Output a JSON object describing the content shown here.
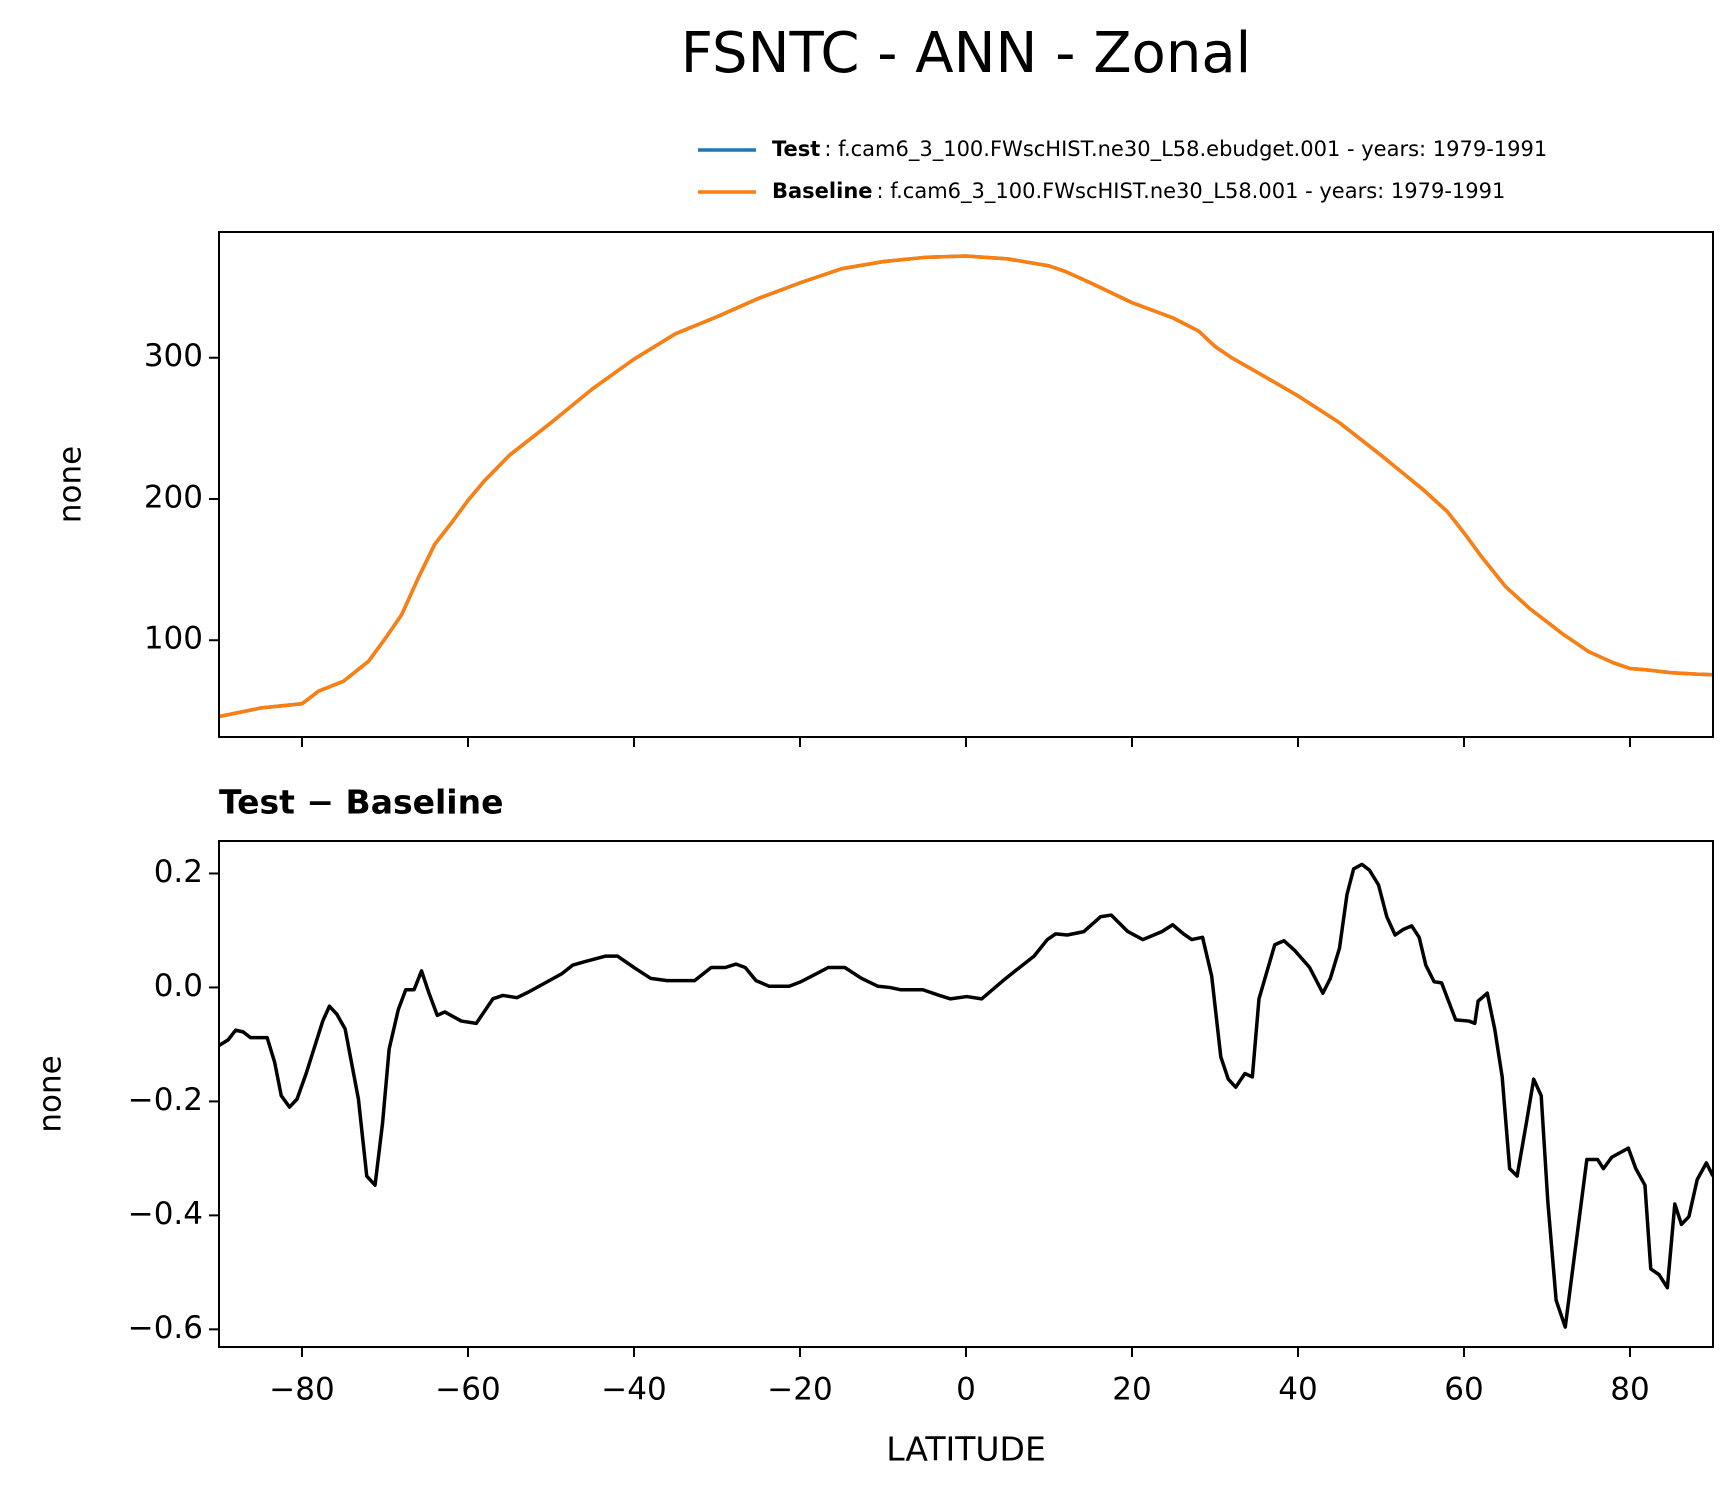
{
  "title": "FSNTC - ANN - Zonal",
  "chart_data": [
    {
      "type": "line",
      "ylabel": "none",
      "x": [
        -90,
        -85,
        -80,
        -78,
        -75,
        -72,
        -70,
        -68,
        -66,
        -64,
        -62,
        -60,
        -58,
        -55,
        -50,
        -45,
        -40,
        -35,
        -30,
        -25,
        -20,
        -15,
        -10,
        -5,
        0,
        5,
        10,
        12,
        15,
        20,
        25,
        28,
        30,
        32,
        35,
        40,
        45,
        50,
        55,
        58,
        60,
        62,
        65,
        68,
        70,
        72,
        75,
        78,
        80,
        82,
        85,
        88,
        90
      ],
      "series": [
        {
          "name": "Test",
          "description": ": f.cam6_3_100.FWscHIST.ne30_L58.ebudget.001 - years: 1979-1991",
          "color": "#1f77b4",
          "values": [
            46,
            52,
            55,
            64,
            71,
            85,
            101,
            118,
            144,
            168,
            183,
            199,
            213,
            231,
            254,
            278,
            299,
            317,
            329,
            342,
            353,
            363,
            368,
            371,
            372,
            370,
            365,
            361,
            353,
            339,
            328,
            319,
            308,
            300,
            290,
            273,
            254,
            231,
            207,
            191,
            176,
            160,
            138,
            122,
            113,
            104,
            92,
            84,
            80,
            79,
            77,
            76,
            75.6
          ]
        },
        {
          "name": "Baseline",
          "description": ": f.cam6_3_100.FWscHIST.ne30_L58.001 - years: 1979-1991",
          "color": "#ff7f0e",
          "values": [
            46,
            52,
            55,
            64,
            71,
            85,
            101,
            118,
            144,
            168,
            183,
            199,
            213,
            231,
            254,
            278,
            299,
            317,
            329,
            342,
            353,
            363,
            368,
            371,
            372,
            370,
            365,
            361,
            353,
            339,
            328,
            319,
            308,
            300,
            290,
            273,
            254,
            231,
            207,
            191,
            176,
            160,
            138,
            122,
            113,
            104,
            92,
            84,
            80,
            79,
            77,
            76,
            75.6
          ]
        }
      ],
      "xlim": [
        -90,
        90
      ],
      "xticks": [
        -80,
        -60,
        -40,
        -20,
        0,
        20,
        40,
        60,
        80
      ],
      "ylim": [
        31.5,
        389
      ],
      "yticks": [
        100,
        200,
        300
      ]
    },
    {
      "type": "line",
      "title": "Test − Baseline",
      "xlabel": "LATITUDE",
      "ylabel": "none",
      "x": [
        -90,
        -88.9,
        -88,
        -87.1,
        -86.2,
        -84.2,
        -83.3,
        -82.5,
        -81.5,
        -80.6,
        -79.5,
        -77.5,
        -76.7,
        -75.8,
        -74.8,
        -73.2,
        -72.2,
        -71.2,
        -70.3,
        -69.5,
        -68.4,
        -67.5,
        -66.5,
        -65.6,
        -64.7,
        -63.7,
        -62.8,
        -60.8,
        -59,
        -57,
        -55.8,
        -54.1,
        -52.7,
        -50.7,
        -48.7,
        -47.4,
        -46,
        -43.4,
        -42,
        -40,
        -38,
        -36,
        -32.7,
        -30.7,
        -29,
        -27.7,
        -26.6,
        -25.3,
        -23.7,
        -21.3,
        -19.9,
        -17.9,
        -16.6,
        -14.6,
        -12.6,
        -10.6,
        -9.2,
        -7.9,
        -5.2,
        -3.2,
        -1.9,
        0.1,
        1.9,
        4.8,
        8.2,
        9.8,
        10.8,
        12.2,
        14.2,
        16.2,
        17.5,
        19.5,
        21.3,
        23.6,
        24.9,
        26.2,
        27.2,
        28.5,
        29.6,
        30.7,
        31.6,
        32.5,
        33.6,
        34.5,
        35.3,
        37.2,
        38.3,
        39.6,
        41.4,
        43,
        43.9,
        45,
        45.9,
        46.7,
        47.7,
        48.6,
        49.7,
        50.7,
        51.7,
        52.7,
        53.7,
        54.6,
        55.4,
        56.4,
        57.3,
        59,
        60.6,
        61.3,
        61.7,
        62.8,
        63.7,
        64.6,
        65.5,
        66.4,
        67.5,
        68.4,
        69.3,
        70.1,
        71.1,
        72.2,
        73.1,
        74.8,
        76.1,
        76.8,
        77.8,
        79.8,
        80.7,
        81.8,
        82.5,
        83.5,
        84.5,
        85.4,
        86.2,
        87.1,
        88.1,
        89.2,
        90
      ],
      "series": [
        {
          "color": "#000000",
          "values": [
            -0.102,
            -0.092,
            -0.075,
            -0.078,
            -0.088,
            -0.088,
            -0.131,
            -0.19,
            -0.21,
            -0.196,
            -0.151,
            -0.059,
            -0.033,
            -0.047,
            -0.073,
            -0.196,
            -0.331,
            -0.347,
            -0.239,
            -0.108,
            -0.039,
            -0.004,
            -0.004,
            0.029,
            -0.01,
            -0.049,
            -0.043,
            -0.059,
            -0.063,
            -0.02,
            -0.014,
            -0.018,
            -0.008,
            0.008,
            0.024,
            0.039,
            0.045,
            0.055,
            0.055,
            0.035,
            0.016,
            0.012,
            0.012,
            0.035,
            0.035,
            0.041,
            0.035,
            0.012,
            0.002,
            0.002,
            0.01,
            0.025,
            0.035,
            0.035,
            0.016,
            0.002,
            0,
            -0.004,
            -0.004,
            -0.014,
            -0.02,
            -0.016,
            -0.02,
            0.016,
            0.055,
            0.084,
            0.094,
            0.092,
            0.098,
            0.124,
            0.127,
            0.098,
            0.084,
            0.098,
            0.11,
            0.094,
            0.084,
            0.088,
            0.02,
            -0.122,
            -0.161,
            -0.175,
            -0.151,
            -0.157,
            -0.02,
            0.075,
            0.082,
            0.065,
            0.035,
            -0.01,
            0.016,
            0.069,
            0.163,
            0.208,
            0.216,
            0.206,
            0.18,
            0.124,
            0.092,
            0.102,
            0.108,
            0.088,
            0.039,
            0.01,
            0.008,
            -0.057,
            -0.059,
            -0.063,
            -0.024,
            -0.01,
            -0.073,
            -0.157,
            -0.318,
            -0.331,
            -0.239,
            -0.161,
            -0.19,
            -0.376,
            -0.549,
            -0.596,
            -0.494,
            -0.302,
            -0.302,
            -0.318,
            -0.298,
            -0.282,
            -0.318,
            -0.347,
            -0.494,
            -0.504,
            -0.527,
            -0.38,
            -0.416,
            -0.402,
            -0.337,
            -0.308,
            -0.331
          ]
        }
      ],
      "xlim": [
        -90,
        90
      ],
      "xticks": [
        {
          "value": -80,
          "label": "−80"
        },
        {
          "value": -60,
          "label": "−60"
        },
        {
          "value": -40,
          "label": "−40"
        },
        {
          "value": -20,
          "label": "−20"
        },
        0,
        20,
        40,
        60,
        80
      ],
      "ylim": [
        -0.631,
        0.257
      ],
      "yticks": [
        {
          "value": -0.6,
          "label": "−0.6"
        },
        {
          "value": -0.4,
          "label": "−0.4"
        },
        {
          "value": -0.2,
          "label": "−0.2"
        },
        {
          "value": 0,
          "label": "0.0"
        },
        {
          "value": 0.2,
          "label": "0.2"
        }
      ]
    }
  ]
}
